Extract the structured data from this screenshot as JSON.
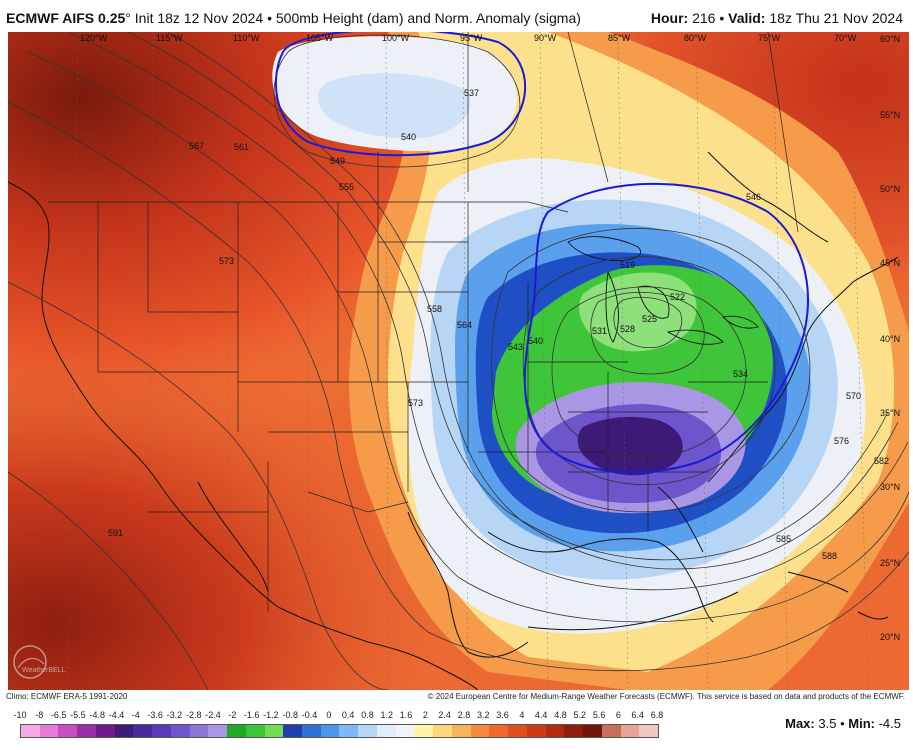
{
  "header": {
    "model": "ECMWF AIFS 0.25",
    "degree": "°",
    "init": "Init 18z 12 Nov 2024",
    "bullet": "•",
    "product": "500mb Height (dam) and Norm. Anomaly (sigma)",
    "hour_label": "Hour:",
    "hour_value": "216",
    "valid_label": "Valid:",
    "valid_value": "18z Thu 21 Nov 2024"
  },
  "map": {
    "lon_labels": [
      "120°W",
      "115°W",
      "110°W",
      "105°W",
      "100°W",
      "95°W",
      "90°W",
      "85°W",
      "80°W",
      "75°W",
      "70°W"
    ],
    "lat_labels": [
      "60°N",
      "55°N",
      "50°N",
      "45°N",
      "40°N",
      "35°N",
      "30°N",
      "25°N",
      "20°N"
    ],
    "contour_labels": [
      "537",
      "540",
      "549",
      "555",
      "561",
      "567",
      "573",
      "546",
      "558",
      "564",
      "543",
      "540",
      "531",
      "528",
      "525",
      "519",
      "522",
      "534",
      "570",
      "576",
      "582",
      "585",
      "588",
      "591",
      "573"
    ],
    "logo_text": "WeatherBELL"
  },
  "credits": {
    "left": "Climo: ECMWF ERA-5 1991-2020",
    "right": "© 2024 European Centre for Medium-Range Weather Forecasts (ECMWF). This service is based on data and products of the ECMWF."
  },
  "scale": {
    "ticks": [
      "-10",
      "-8",
      "-6.5",
      "-5.5",
      "-4.8",
      "-4.4",
      "-4",
      "-3.6",
      "-3.2",
      "-2.8",
      "-2.4",
      "-2",
      "-1.6",
      "-1.2",
      "-0.8",
      "-0.4",
      "0",
      "0.4",
      "0.8",
      "1.2",
      "1.6",
      "2",
      "2.4",
      "2.8",
      "3.2",
      "3.6",
      "4",
      "4.4",
      "4.8",
      "5.2",
      "5.6",
      "6",
      "6.4",
      "6.8"
    ],
    "colors": [
      "#f7a8e6",
      "#e57ad8",
      "#c84fc0",
      "#9b2ea8",
      "#6e1a8c",
      "#3d1a78",
      "#4a2a98",
      "#5a3cb8",
      "#6d55cc",
      "#8b76d8",
      "#a996e4",
      "#22a827",
      "#3ac43a",
      "#6fdc5a",
      "#1f3fb0",
      "#2f6fd8",
      "#4c95ea",
      "#7fb8f2",
      "#b5d6f7",
      "#e3ecfa",
      "#f3f3f7",
      "#fef3a8",
      "#fcd87a",
      "#f9b35a",
      "#f68a3c",
      "#ef6a2a",
      "#e14e20",
      "#cc3a18",
      "#b22a12",
      "#8e1e0c",
      "#6e160a",
      "#c86e5a",
      "#e6a396",
      "#f1c8bf"
    ],
    "max_label": "Max:",
    "max_value": "3.5",
    "min_label": "Min:",
    "min_value": "-4.5",
    "separator": "•"
  }
}
